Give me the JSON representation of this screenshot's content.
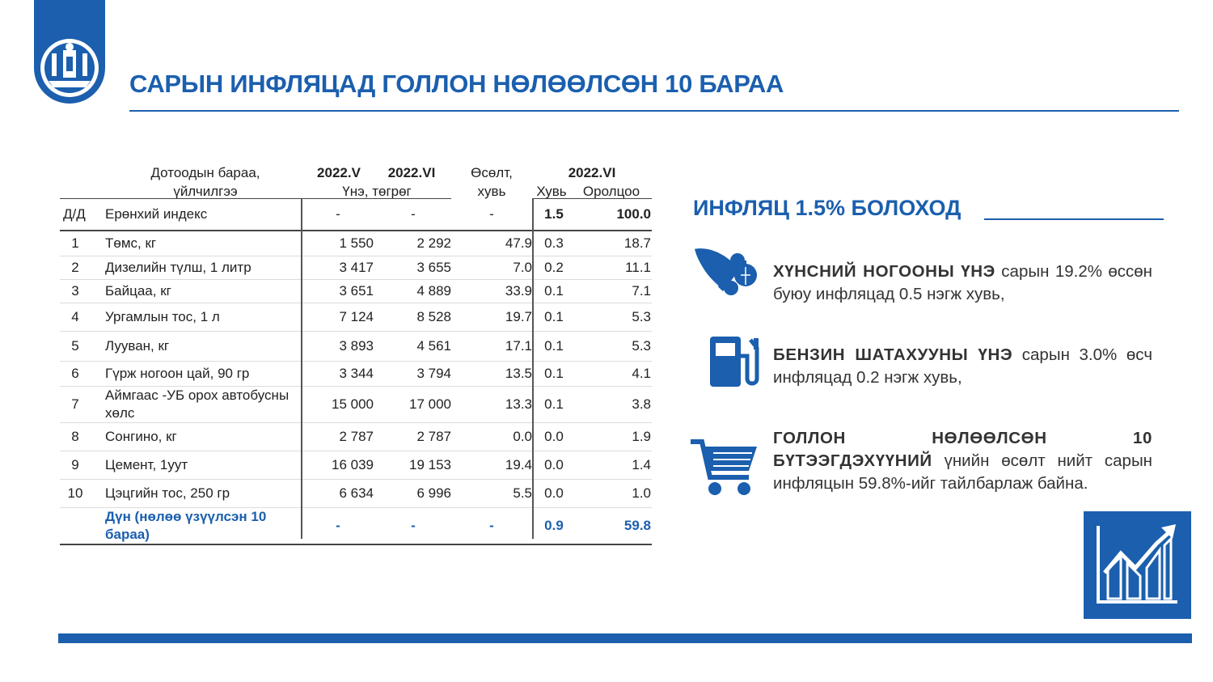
{
  "title": "САРЫН ИНФЛЯЦАД ГОЛЛОН НӨЛӨӨЛСӨН 10 БАРАА",
  "colors": {
    "brand": "#1b5fae",
    "text": "#222222"
  },
  "table": {
    "header": {
      "name_line1": "Дотоодын бараа,",
      "name_line2": "үйлчилгээ",
      "col_may": "2022.V",
      "col_jun": "2022.VI",
      "price_unit": "Үнэ, төгрөг",
      "growth_line1": "Өсөлт,",
      "growth_line2": "хувь",
      "share_year": "2022.VI",
      "share": "Хувь",
      "contrib": "Оролцоо"
    },
    "general": {
      "no": "Д/Д",
      "name": "Ерөнхий индекс",
      "may": "-",
      "jun": "-",
      "growth": "-",
      "share": "1.5",
      "contrib": "100.0"
    },
    "rows": [
      {
        "no": "1",
        "name": "Төмс, кг",
        "may": "1 550",
        "jun": "2 292",
        "growth": "47.9",
        "share": "0.3",
        "contrib": "18.7"
      },
      {
        "no": "2",
        "name": "Дизелийн түлш, 1 литр",
        "may": "3 417",
        "jun": "3 655",
        "growth": "7.0",
        "share": "0.2",
        "contrib": "11.1"
      },
      {
        "no": "3",
        "name": "Байцаа, кг",
        "may": "3 651",
        "jun": "4 889",
        "growth": "33.9",
        "share": "0.1",
        "contrib": "7.1"
      },
      {
        "no": "4",
        "name": "Ургамлын тос, 1 л",
        "may": "7 124",
        "jun": "8 528",
        "growth": "19.7",
        "share": "0.1",
        "contrib": "5.3"
      },
      {
        "no": "5",
        "name": "Лууван, кг",
        "may": "3 893",
        "jun": "4 561",
        "growth": "17.1",
        "share": "0.1",
        "contrib": "5.3"
      },
      {
        "no": "6",
        "name": "Гүрж ногоон цай, 90 гр",
        "may": "3 344",
        "jun": "3 794",
        "growth": "13.5",
        "share": "0.1",
        "contrib": "4.1"
      },
      {
        "no": "7",
        "name": "Аймгаас -УБ орох автобусны хөлс",
        "may": "15 000",
        "jun": "17 000",
        "growth": "13.3",
        "share": "0.1",
        "contrib": "3.8"
      },
      {
        "no": "8",
        "name": "Сонгино, кг",
        "may": "2 787",
        "jun": "2 787",
        "growth": "0.0",
        "share": "0.0",
        "contrib": "1.9"
      },
      {
        "no": "9",
        "name": "Цемент, 1уут",
        "may": "16 039",
        "jun": "19 153",
        "growth": "19.4",
        "share": "0.0",
        "contrib": "1.4"
      },
      {
        "no": "10",
        "name": "Цэцгийн тос, 250 гр",
        "may": "6 634",
        "jun": "6 996",
        "growth": "5.5",
        "share": "0.0",
        "contrib": "1.0"
      }
    ],
    "total": {
      "name": "Дүн (нөлөө үзүүлсэн 10 бараа)",
      "may": "-",
      "jun": "-",
      "growth": "-",
      "share": "0.9",
      "contrib": "59.8"
    }
  },
  "inflation_heading": "ИНФЛЯЦ 1.5% БОЛОХОД",
  "points": [
    {
      "icon": "vegetable-basket-icon",
      "bold": "ХҮНСНИЙ НОГООНЫ ҮНЭ",
      "text": " сарын 19.2% өссөн буюу инфляцад 0.5 нэгж хувь,"
    },
    {
      "icon": "fuel-pump-icon",
      "bold": "БЕНЗИН ШАТАХУУНЫ ҮНЭ",
      "text": " сарын 3.0% өсч инфляцад 0.2 нэгж хувь,"
    },
    {
      "icon": "shopping-cart-icon",
      "bold": "ГОЛЛОН НӨЛӨӨЛСӨН 10 БҮТЭЭГДЭХҮҮНИЙ",
      "text": " үнийн өсөлт нийт сарын инфляцын 59.8%-ийг тайлбарлаж байна."
    }
  ]
}
